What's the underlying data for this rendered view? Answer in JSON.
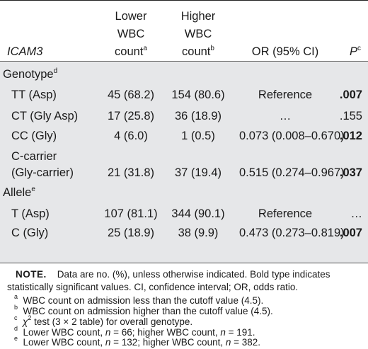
{
  "header": {
    "col_label": "ICAM3",
    "lower_l1": "Lower",
    "lower_l2": "WBC",
    "lower_l3": "count",
    "lower_sup": "a",
    "higher_l1": "Higher",
    "higher_l2": "WBC",
    "higher_l3": "count",
    "higher_sup": "b",
    "or": "OR (95% CI)",
    "p": "P",
    "p_sup": "c"
  },
  "sections": {
    "genotype": {
      "label": "Genotype",
      "sup": "d"
    },
    "allele": {
      "label": "Allele",
      "sup": "e"
    }
  },
  "rows": [
    {
      "label": "TT (Asp)",
      "lower": "45 (68.2)",
      "higher": "154 (80.6)",
      "or": "Reference",
      "p": ".007"
    },
    {
      "label": "CT (Gly Asp)",
      "lower": "17 (25.8)",
      "higher": "36 (18.9)",
      "or": "…",
      "p": ".155"
    },
    {
      "label": "CC (Gly)",
      "lower": "4 (6.0)",
      "higher": "1 (0.5)",
      "or": "0.073 (0.008–0.670)",
      "p": ".012"
    },
    {
      "label": "C-carrier",
      "label2": "(Gly-carrier)",
      "lower": "21 (31.8)",
      "higher": "37 (19.4)",
      "or": "0.515 (0.274–0.967)",
      "p": ".037"
    },
    {
      "label": "T (Asp)",
      "lower": "107 (81.1)",
      "higher": "344 (90.1)",
      "or": "Reference",
      "p": "…"
    },
    {
      "label": "C (Gly)",
      "lower": "25 (18.9)",
      "higher": "38 (9.9)",
      "or": "0.473 (0.273–0.819)",
      "p": ".007"
    }
  ],
  "notes": {
    "note_label": "NOTE.",
    "note_text_1": "Data are no. (%), unless otherwise indicated. Bold type indicates",
    "note_text_2": "statistically significant values. CI, confidence interval; OR, odds ratio.",
    "fa_sup": "a",
    "fa": "WBC count on admission less than the cutoff value (4.5).",
    "fb_sup": "b",
    "fb": "WBC count on admission higher than the cutoff value (4.5).",
    "fc_sup": "c",
    "fc_chi": "χ",
    "fc_chi_sup": "2",
    "fc": "test (3 × 2 table) for overall genotype.",
    "fd_sup": "d",
    "fd_1": "Lower WBC count,",
    "fd_n": "n",
    "fd_2": "= 66; higher WBC count,",
    "fd_n2": "n",
    "fd_3": "= 191.",
    "fe_sup": "e",
    "fe_1": "Lower WBC count,",
    "fe_n": "n",
    "fe_2": "= 132; higher WBC count,",
    "fe_n2": "n",
    "fe_3": "= 382."
  }
}
